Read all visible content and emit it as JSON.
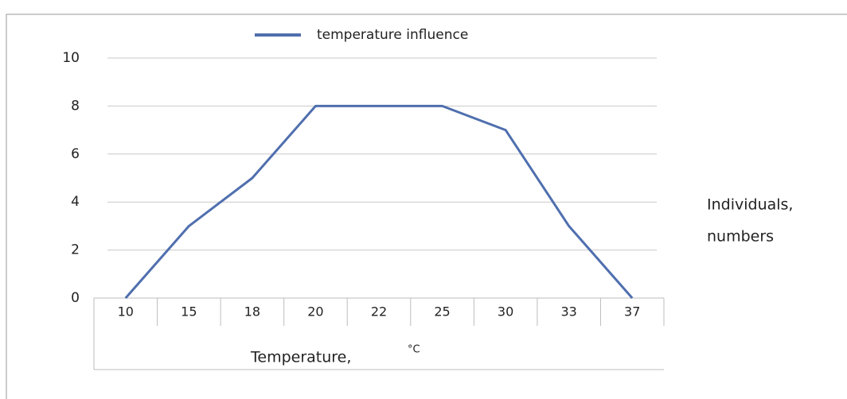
{
  "chart_data": {
    "type": "line",
    "categories": [
      "10",
      "15",
      "18",
      "20",
      "22",
      "25",
      "30",
      "33",
      "37"
    ],
    "series": [
      {
        "name": "temperature influence",
        "color": "#4f6fae",
        "values": [
          0,
          3,
          5,
          8,
          8,
          8,
          7,
          3,
          0
        ]
      }
    ],
    "ylim": [
      0,
      10
    ],
    "yticks": [
      0,
      2,
      4,
      6,
      8,
      10
    ],
    "grid": true,
    "x_label": [
      "Temperature,",
      "°C"
    ],
    "y_label": [
      "Individuals,",
      "numbers"
    ]
  }
}
